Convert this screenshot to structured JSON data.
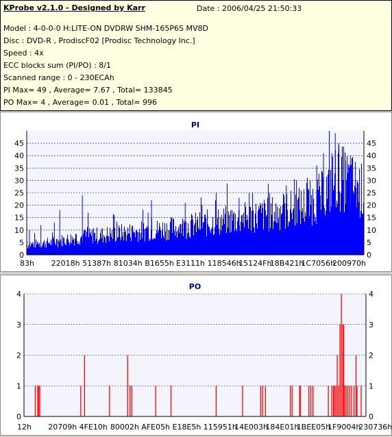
{
  "header": {
    "app_title": "KProbe v2.1.0 - Designed by Karr",
    "date": "Date : 2006/04/25 21:50:33"
  },
  "info": {
    "model": "Model : 4-0-0-0 H:LITE-ON DVDRW SHM-165P6S MV8D",
    "disc": "Disc : DVD-R , ProdiscF02 [Prodisc Technology Inc.]",
    "speed": "Speed : 4x",
    "ecc": "ECC blocks sum (PI/PO) : 8/1",
    "range": "Scanned range : 0 - 230ECAh",
    "pi_stats": "PI Max= 49 , Average= 7.67 , Total= 133845",
    "po_stats": "PO Max= 4 , Average= 0.01 , Total= 996"
  },
  "colors": {
    "panel_bg": "#ffffe1",
    "chart_bg": "#fff",
    "plot_bg": "#f4f4fc",
    "pi_bar": "#0000ff",
    "po_bar": "#ff0000",
    "title": "#000080",
    "grid": "#000080"
  },
  "chart_data": [
    {
      "type": "bar",
      "title": "PI",
      "ylim": [
        0,
        50
      ],
      "yticks": [
        0,
        5,
        10,
        15,
        20,
        25,
        30,
        35,
        40,
        45
      ],
      "xticks": [
        "83h",
        "22018h",
        "51387h",
        "81034h",
        "B1655h",
        "E3111h",
        "118546h",
        "15124Fh",
        "18B421h",
        "1C7056h",
        "200970h"
      ],
      "grid": true,
      "max": 49,
      "average": 7.67,
      "profile": [
        [
          0,
          4
        ],
        [
          0.07,
          5
        ],
        [
          0.15,
          7
        ],
        [
          0.3,
          9
        ],
        [
          0.45,
          11
        ],
        [
          0.6,
          14
        ],
        [
          0.75,
          17
        ],
        [
          0.83,
          20
        ],
        [
          0.88,
          24
        ],
        [
          0.92,
          32
        ],
        [
          0.97,
          28
        ],
        [
          1,
          25
        ]
      ],
      "spikes": [
        [
          0.008,
          10
        ],
        [
          0.042,
          12
        ],
        [
          0.082,
          13
        ],
        [
          0.098,
          18
        ],
        [
          0.165,
          24
        ],
        [
          0.182,
          17
        ],
        [
          0.26,
          16
        ],
        [
          0.36,
          17
        ],
        [
          0.37,
          22
        ],
        [
          0.47,
          21
        ],
        [
          0.52,
          20
        ],
        [
          0.56,
          22
        ],
        [
          0.63,
          23
        ],
        [
          0.66,
          25
        ],
        [
          0.72,
          25
        ],
        [
          0.77,
          28
        ],
        [
          0.8,
          30
        ],
        [
          0.83,
          29
        ],
        [
          0.86,
          36
        ],
        [
          0.88,
          41
        ],
        [
          0.905,
          41
        ],
        [
          0.915,
          49
        ],
        [
          0.925,
          45
        ],
        [
          0.945,
          38
        ],
        [
          0.96,
          40
        ],
        [
          0.98,
          30
        ]
      ]
    },
    {
      "type": "bar",
      "title": "PO",
      "ylim": [
        0,
        4
      ],
      "yticks": [
        0,
        1,
        2,
        3,
        4
      ],
      "xticks": [
        "12h",
        "20709h",
        "4FE10h",
        "80002h",
        "AFE05h",
        "E18E5h",
        "115951h",
        "14E003h",
        "184E01h",
        "1BEE05h",
        "1F9004h",
        "230736h"
      ],
      "grid": true,
      "max": 4,
      "average": 0.01,
      "bars": [
        [
          0.033,
          1
        ],
        [
          0.04,
          1
        ],
        [
          0.043,
          1
        ],
        [
          0.046,
          1
        ],
        [
          0.166,
          1
        ],
        [
          0.177,
          2
        ],
        [
          0.25,
          1
        ],
        [
          0.303,
          2
        ],
        [
          0.31,
          1
        ],
        [
          0.315,
          1
        ],
        [
          0.385,
          1
        ],
        [
          0.43,
          1
        ],
        [
          0.562,
          1
        ],
        [
          0.639,
          1
        ],
        [
          0.692,
          1
        ],
        [
          0.698,
          1
        ],
        [
          0.706,
          1
        ],
        [
          0.779,
          1
        ],
        [
          0.784,
          1
        ],
        [
          0.806,
          1
        ],
        [
          0.808,
          1
        ],
        [
          0.833,
          1
        ],
        [
          0.839,
          1
        ],
        [
          0.845,
          1
        ],
        [
          0.89,
          1
        ],
        [
          0.9,
          1
        ],
        [
          0.905,
          1
        ],
        [
          0.908,
          1
        ],
        [
          0.912,
          1
        ],
        [
          0.916,
          2
        ],
        [
          0.92,
          1
        ],
        [
          0.924,
          3
        ],
        [
          0.928,
          4
        ],
        [
          0.932,
          3
        ],
        [
          0.935,
          3
        ],
        [
          0.938,
          1
        ],
        [
          0.942,
          1
        ],
        [
          0.947,
          1
        ],
        [
          0.952,
          1
        ],
        [
          0.958,
          1
        ],
        [
          0.965,
          1
        ],
        [
          0.971,
          2
        ],
        [
          0.974,
          1
        ],
        [
          0.986,
          1
        ]
      ]
    }
  ]
}
